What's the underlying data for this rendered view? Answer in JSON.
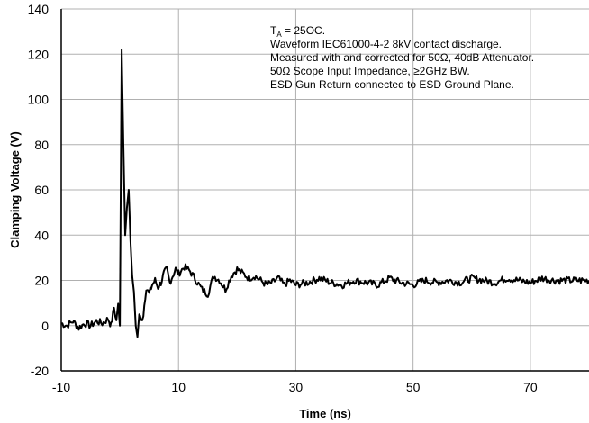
{
  "chart_data": {
    "type": "line",
    "xlabel": "Time (ns)",
    "ylabel": "Clamping Voltage (V)",
    "xlim": [
      -10,
      80
    ],
    "ylim": [
      -20,
      140
    ],
    "x_ticks": [
      -10,
      10,
      30,
      50,
      70
    ],
    "x_tick_labels": [
      "-10",
      "10",
      "30",
      "50",
      "70"
    ],
    "y_ticks": [
      -20,
      0,
      20,
      40,
      60,
      80,
      100,
      120,
      140
    ],
    "y_tick_labels": [
      "-20",
      "0",
      "20",
      "40",
      "60",
      "80",
      "100",
      "120",
      "140"
    ],
    "grid": true,
    "line_color": "#000000",
    "grid_color": "#b0b0b0",
    "annotations": {
      "line1_main": "T",
      "line1_sub": "A",
      "line1_rest": " = 25OC.",
      "line2": "Waveform IEC61000-4-2 8kV contact discharge.",
      "line3": "Measured with and corrected for 50Ω, 40dB Attenuator.",
      "line4": "50Ω Scope Input Impedance, ≥2GHz BW.",
      "line5": "ESD Gun Return connected to ESD Ground Plane."
    },
    "series": [
      {
        "x": [
          -10,
          -9,
          -8,
          -7,
          -6,
          -5,
          -4,
          -3,
          -2,
          -1.5,
          -1,
          -0.6,
          -0.3,
          0,
          0.3,
          0.6,
          0.9,
          1.2,
          1.5,
          1.8,
          2.1,
          2.4,
          2.7,
          3.0,
          3.3,
          3.6,
          4,
          4.5,
          5,
          5.5,
          6,
          6.5,
          7,
          7.5,
          8,
          8.5,
          9,
          9.5,
          10,
          11,
          12,
          13,
          14,
          15,
          16,
          17,
          18,
          19,
          20,
          21,
          22,
          23,
          24,
          25,
          26,
          27,
          28,
          29,
          30,
          32,
          34,
          36,
          38,
          40,
          42,
          44,
          46,
          48,
          50,
          52,
          54,
          56,
          58,
          60,
          62,
          64,
          66,
          68,
          70,
          72,
          74,
          76,
          78,
          80
        ],
        "y": [
          1,
          0,
          2,
          -1,
          1,
          0,
          2,
          1,
          3,
          0,
          8,
          2,
          10,
          0,
          122,
          80,
          40,
          52,
          60,
          38,
          22,
          15,
          0,
          -5,
          5,
          2,
          5,
          17,
          14,
          18,
          20,
          17,
          19,
          23,
          25,
          19,
          22,
          25,
          23,
          26,
          24,
          20,
          16,
          14,
          22,
          20,
          16,
          22,
          25,
          23,
          21,
          22,
          20,
          18,
          19,
          21,
          18,
          20,
          18,
          19,
          21,
          19,
          18,
          20,
          19,
          18,
          21,
          19,
          18,
          20,
          19,
          20,
          19,
          21,
          20,
          19,
          21,
          20,
          19,
          21,
          20,
          20,
          20,
          20
        ]
      }
    ]
  }
}
